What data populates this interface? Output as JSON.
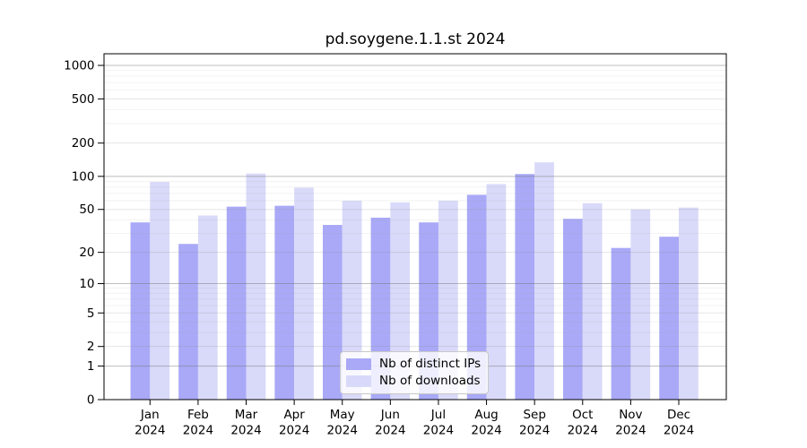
{
  "chart_data": {
    "type": "bar",
    "title": "pd.soygene.1.1.st 2024",
    "categories": [
      "Jan",
      "Feb",
      "Mar",
      "Apr",
      "May",
      "Jun",
      "Jul",
      "Aug",
      "Sep",
      "Oct",
      "Nov",
      "Dec"
    ],
    "category_year": "2024",
    "series": [
      {
        "name": "Nb of distinct IPs",
        "color": "#a9a9f7",
        "values": [
          38,
          24,
          53,
          54,
          36,
          42,
          38,
          68,
          105,
          41,
          22,
          28
        ]
      },
      {
        "name": "Nb of downloads",
        "color": "#d9d9f9",
        "values": [
          89,
          44,
          106,
          79,
          60,
          58,
          60,
          85,
          134,
          57,
          50,
          52
        ]
      }
    ],
    "yscale": "log1p",
    "ylim": [
      0,
      1000
    ],
    "yticks": [
      0,
      1,
      2,
      5,
      10,
      20,
      50,
      100,
      200,
      500,
      1000
    ],
    "minor_yticks": [
      3,
      4,
      6,
      7,
      8,
      9,
      30,
      40,
      60,
      70,
      80,
      90,
      300,
      400,
      600,
      700,
      800,
      900
    ],
    "grid": true,
    "legend_position": "lower center inside"
  }
}
